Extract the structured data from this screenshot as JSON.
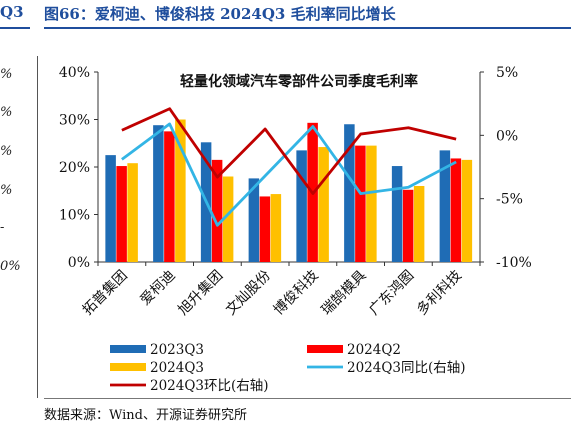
{
  "page": {
    "prev_title": "Q3",
    "title": "图66：爱柯迪、博俊科技 2024Q3 毛利率同比增长",
    "prev_ticks": [
      "%",
      "%",
      "%",
      "%",
      "-",
      "0%"
    ],
    "source": "数据来源：Wind、开源证券研究所"
  },
  "colors": {
    "title_blue": "#1f4e9d",
    "s2023Q3": "#1f6cb5",
    "s2024Q2": "#ff0000",
    "s2024Q3": "#ffc000",
    "yoy": "#33b5e5",
    "qoq": "#c00000"
  },
  "chart_data": {
    "type": "bar",
    "title": "轻量化领域汽车零部件公司季度毛利率",
    "categories": [
      "拓普集团",
      "爱柯迪",
      "旭升集团",
      "文灿股份",
      "博俊科技",
      "瑞鹄模具",
      "广东鸿图",
      "多利科技"
    ],
    "ylim": [
      0,
      40
    ],
    "yticks": [
      "0%",
      "10%",
      "20%",
      "30%",
      "40%"
    ],
    "y2lim": [
      -10,
      5
    ],
    "y2ticks": [
      "-10%",
      "-5%",
      "0%",
      "5%"
    ],
    "series": [
      {
        "name": "2023Q3",
        "type": "bar",
        "axis": "left",
        "color": "#1f6cb5",
        "values": [
          22.5,
          28.8,
          25.2,
          17.6,
          23.5,
          29.0,
          20.2,
          23.5
        ]
      },
      {
        "name": "2024Q2",
        "type": "bar",
        "axis": "left",
        "color": "#ff0000",
        "values": [
          20.2,
          27.5,
          21.5,
          13.8,
          29.3,
          24.5,
          15.2,
          21.8
        ]
      },
      {
        "name": "2024Q3",
        "type": "bar",
        "axis": "left",
        "color": "#ffc000",
        "values": [
          20.8,
          30.0,
          18.0,
          14.3,
          24.2,
          24.5,
          16.0,
          21.5
        ]
      },
      {
        "name": "2024Q3同比(右轴)",
        "type": "line",
        "axis": "right",
        "color": "#33b5e5",
        "values": [
          -1.9,
          0.9,
          -7.1,
          -3.2,
          0.7,
          -4.6,
          -4.1,
          -2.1
        ]
      },
      {
        "name": "2024Q3环比(右轴)",
        "type": "line",
        "axis": "right",
        "color": "#c00000",
        "values": [
          0.4,
          2.1,
          -3.3,
          0.5,
          -4.6,
          0.1,
          0.6,
          -0.3
        ]
      }
    ],
    "legend": "bottom",
    "grid": false
  }
}
